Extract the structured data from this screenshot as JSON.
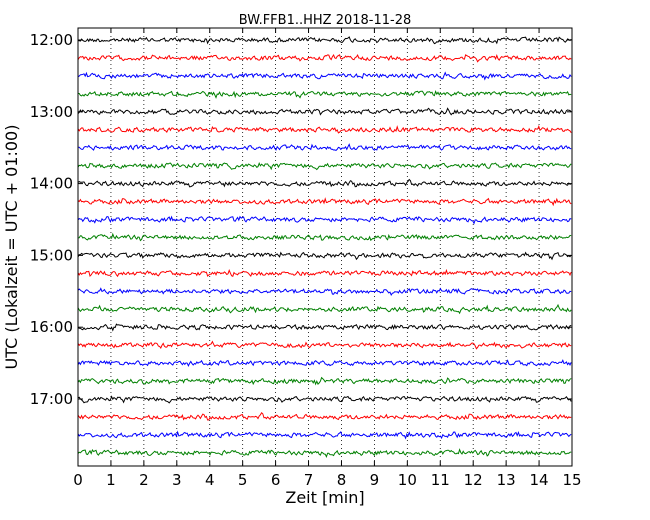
{
  "chart_data": {
    "type": "line",
    "title": "BW.FFB1..HHZ 2018-11-28",
    "xlabel": "Zeit  [min]",
    "ylabel": "UTC (Lokalzeit = UTC + 01:00)",
    "xlim": [
      0,
      15
    ],
    "x_ticks": [
      "0",
      "1",
      "2",
      "3",
      "4",
      "5",
      "6",
      "7",
      "8",
      "9",
      "10",
      "11",
      "12",
      "13",
      "14",
      "15"
    ],
    "y_tick_labels": [
      "12:00",
      "13:00",
      "14:00",
      "15:00",
      "16:00",
      "17:00"
    ],
    "traces_per_hour": 4,
    "trace_start_times": [
      "12:00",
      "12:15",
      "12:30",
      "12:45",
      "13:00",
      "13:15",
      "13:30",
      "13:45",
      "14:00",
      "14:15",
      "14:30",
      "14:45",
      "15:00",
      "15:15",
      "15:30",
      "15:45",
      "16:00",
      "16:15",
      "16:30",
      "16:45",
      "17:00",
      "17:15",
      "17:30",
      "17:45"
    ],
    "trace_colors": [
      "#000000",
      "#ff0000",
      "#0000ff",
      "#008000"
    ],
    "grid_x": true,
    "grid_style": "dotted"
  }
}
